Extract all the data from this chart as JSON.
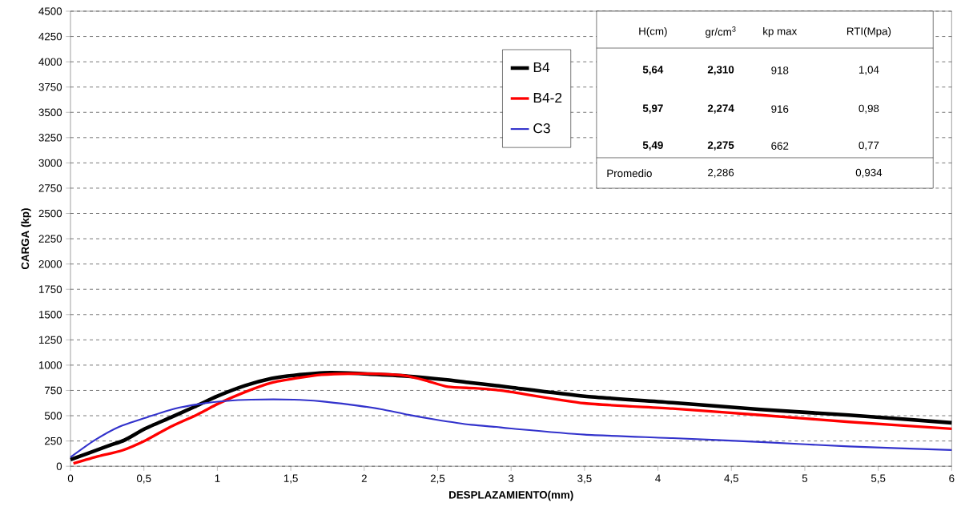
{
  "chart_data": {
    "type": "line",
    "xlabel": "DESPLAZAMIENTO(mm)",
    "ylabel": "CARGA (kp)",
    "xlim": [
      0,
      6
    ],
    "ylim": [
      0,
      4500
    ],
    "xticks": [
      0,
      {
        "value": 0.5,
        "label": "0,5"
      },
      1,
      {
        "value": 1.5,
        "label": "1,5"
      },
      2,
      {
        "value": 2.5,
        "label": "2,5"
      },
      3,
      {
        "value": 3.5,
        "label": "3,5"
      },
      4,
      {
        "value": 4.5,
        "label": "4,5"
      },
      5,
      {
        "value": 5.5,
        "label": "5,5"
      },
      6
    ],
    "yticks": [
      0,
      250,
      500,
      750,
      1000,
      1250,
      1500,
      1750,
      2000,
      2250,
      2500,
      2750,
      3000,
      3250,
      3500,
      3750,
      4000,
      4250,
      4500
    ],
    "grid": "y",
    "legend": "top",
    "marker": "none",
    "line_style": "solid",
    "series": [
      {
        "name": "B4",
        "color": "#000000",
        "x": [
          0,
          0.25,
          0.37,
          0.51,
          0.68,
          0.84,
          1.0,
          1.19,
          1.37,
          1.52,
          1.77,
          2.04,
          2.3,
          2.55,
          2.72,
          2.9,
          3.0,
          3.5,
          4.1,
          4.7,
          5.3,
          6.0
        ],
        "values": [
          65,
          198,
          260,
          373,
          481,
          585,
          693,
          798,
          868,
          899,
          925,
          911,
          891,
          857,
          826,
          798,
          780,
          693,
          629,
          561,
          506,
          430
        ]
      },
      {
        "name": "B4-2",
        "color": "#ff0000",
        "x": [
          0.02,
          0.19,
          0.35,
          0.51,
          0.68,
          0.86,
          1.01,
          1.19,
          1.37,
          1.54,
          1.71,
          1.91,
          2.11,
          2.28,
          2.42,
          2.57,
          2.75,
          2.9,
          3.0,
          3.5,
          4.1,
          4.7,
          5.3,
          6.0
        ],
        "values": [
          28,
          99,
          156,
          255,
          390,
          509,
          622,
          735,
          826,
          871,
          905,
          916,
          913,
          896,
          848,
          786,
          772,
          754,
          735,
          623,
          570,
          506,
          439,
          371
        ]
      },
      {
        "name": "C3",
        "color": "#3333cc",
        "x": [
          0,
          0.16,
          0.33,
          0.53,
          0.7,
          0.88,
          1.05,
          1.23,
          1.52,
          1.71,
          1.91,
          2.11,
          2.3,
          2.49,
          2.73,
          2.9,
          3.0,
          3.5,
          4.1,
          4.7,
          5.3,
          6.0
        ],
        "values": [
          90,
          254,
          390,
          489,
          566,
          616,
          645,
          659,
          659,
          642,
          608,
          566,
          509,
          461,
          410,
          389,
          373,
          313,
          278,
          240,
          196,
          161
        ]
      }
    ],
    "annotations": [
      "H(cm)",
      "gr/cm$^{3}$",
      "kp max",
      "RTI(Mpa)",
      "5,64",
      "2,310",
      "918",
      "1,04",
      "5,97",
      "2,274",
      "916",
      "0,98",
      "5,49",
      "2,275",
      "662",
      "0,77",
      "Promedio",
      "2,286",
      "0,934"
    ]
  }
}
